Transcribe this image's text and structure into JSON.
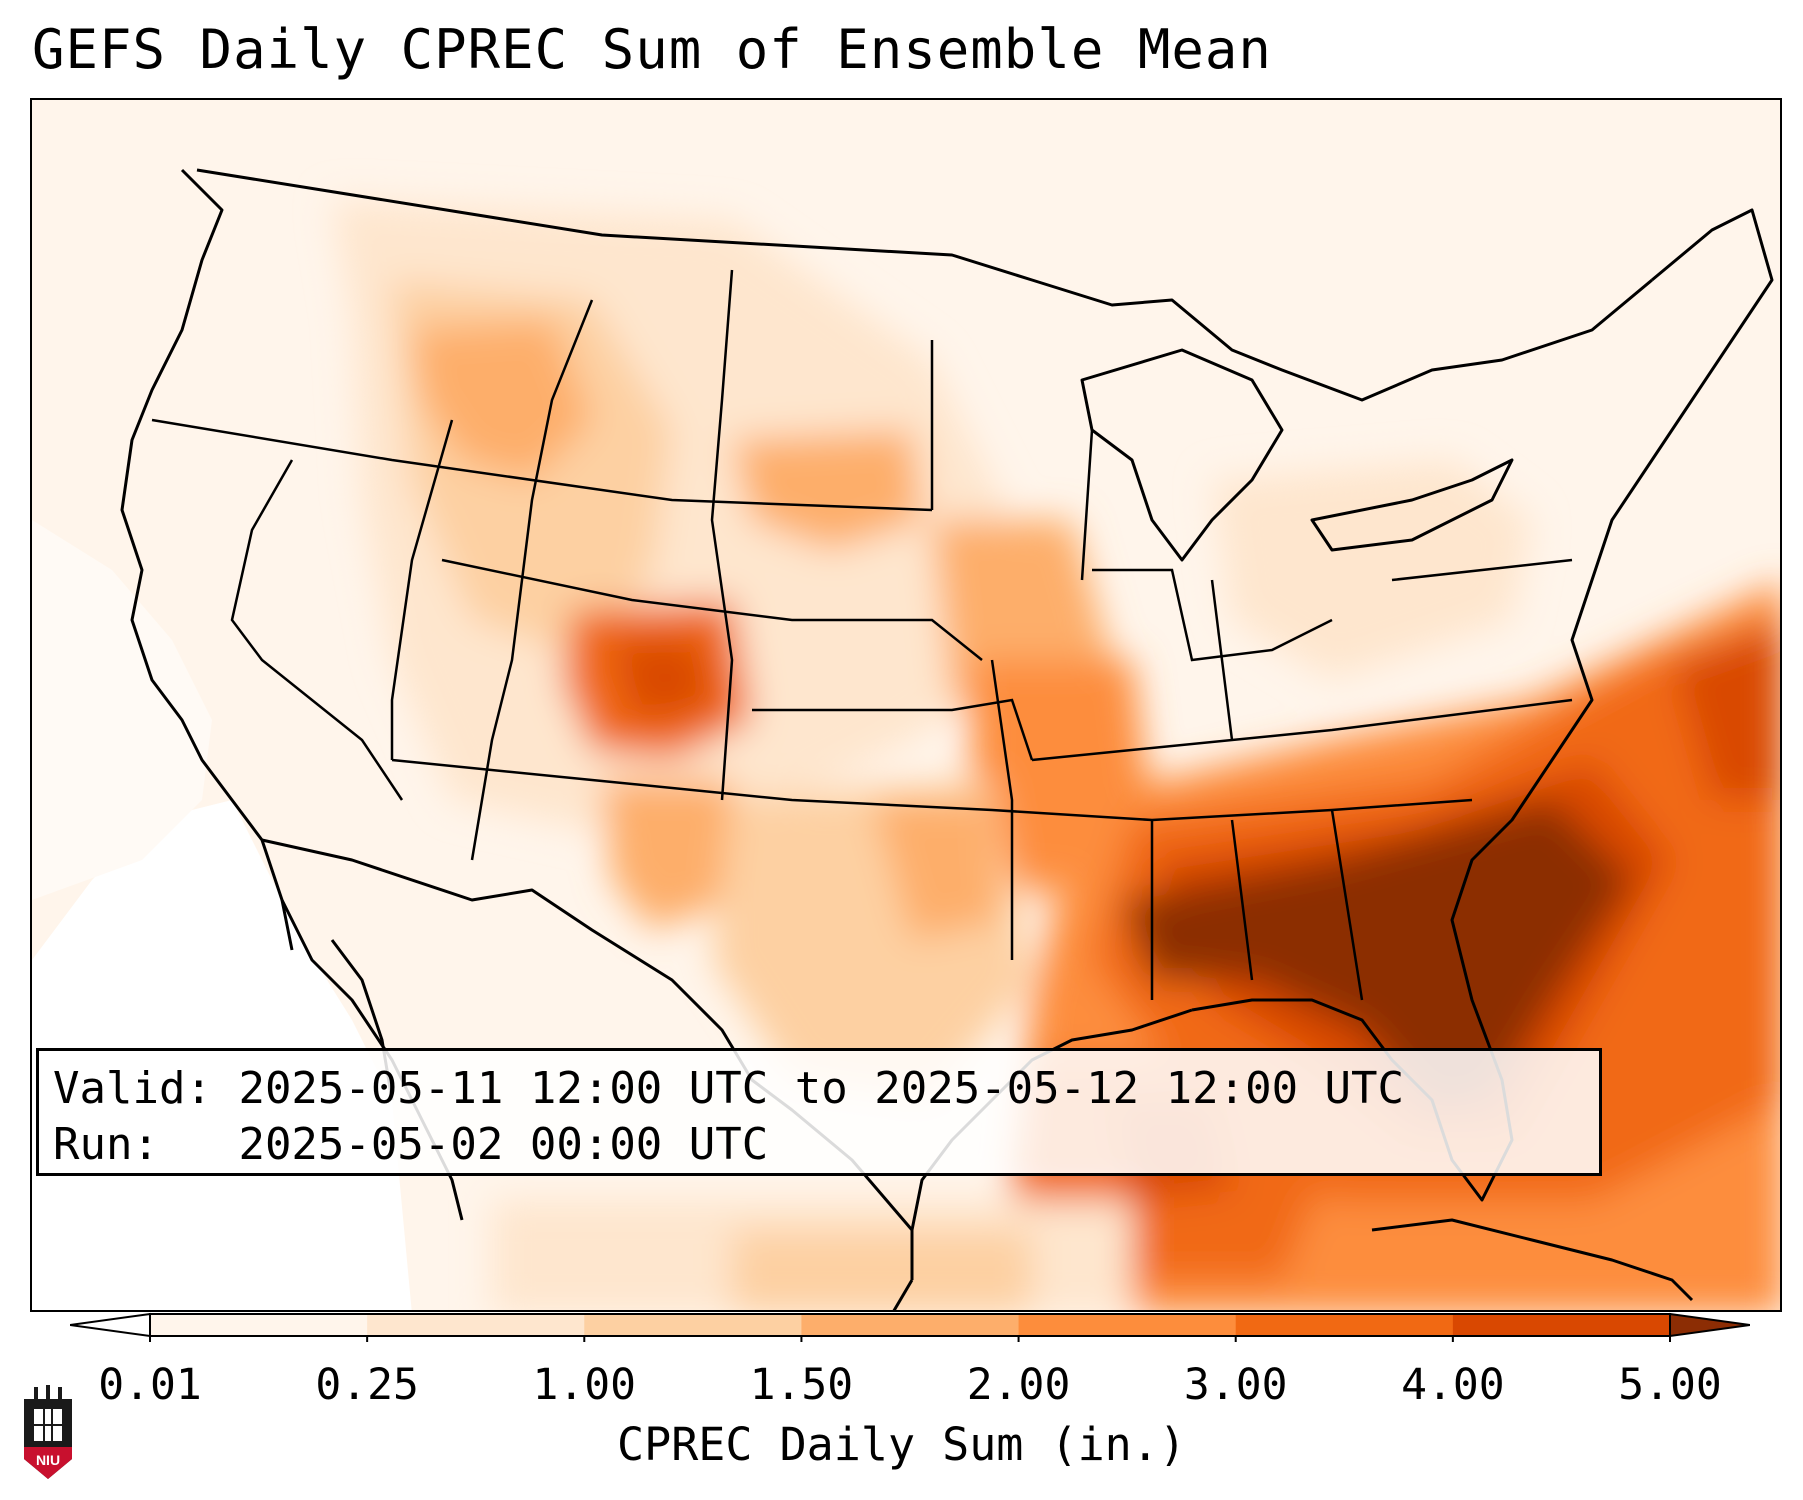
{
  "title": "GEFS Daily CPREC Sum of Ensemble Mean",
  "info": {
    "valid_label": "Valid:",
    "valid_value": "2025-05-11 12:00 UTC to 2025-05-12 12:00 UTC",
    "run_label": "Run:",
    "run_value": "2025-05-02 00:00 UTC"
  },
  "colorbar": {
    "label": "CPREC Daily Sum (in.)",
    "ticks": [
      "0.01",
      "0.25",
      "1.00",
      "1.50",
      "2.00",
      "3.00",
      "4.00",
      "5.00"
    ],
    "colors": [
      "#fff5eb",
      "#fee6ce",
      "#fdd0a2",
      "#fdae6b",
      "#fd8d3c",
      "#f16913",
      "#d94801",
      "#8c2d04"
    ],
    "extend": "both"
  },
  "logo": {
    "text": "NIU",
    "icon": "niu-tower-logo-icon"
  }
}
